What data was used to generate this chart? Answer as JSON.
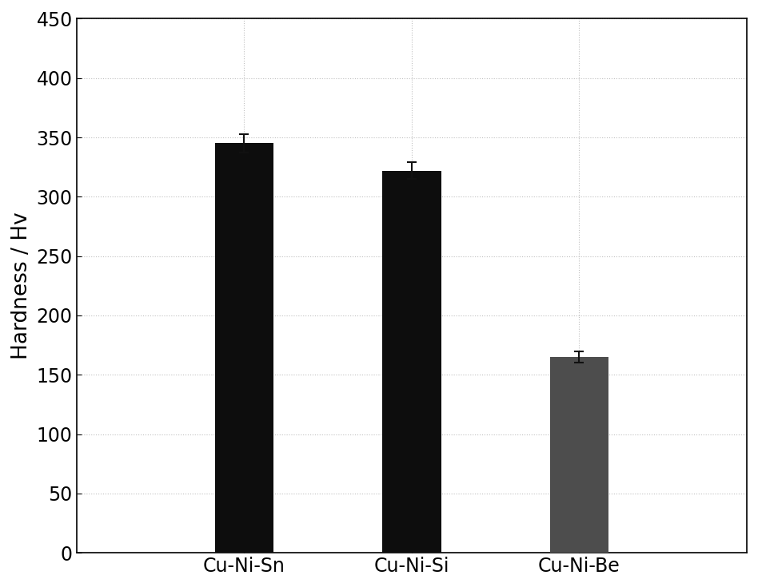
{
  "categories": [
    "Cu-Ni-Sn",
    "Cu-Ni-Si",
    "Cu-Ni-Be"
  ],
  "values": [
    345,
    322,
    165
  ],
  "errors": [
    8,
    7,
    5
  ],
  "bar_colors": [
    "#0d0d0d",
    "#0d0d0d",
    "#4d4d4d"
  ],
  "ylabel": "Hardness / Hv",
  "ylim": [
    0,
    450
  ],
  "yticks": [
    0,
    50,
    100,
    150,
    200,
    250,
    300,
    350,
    400,
    450
  ],
  "background_color": "#ffffff",
  "grid_color": "#c0c0c0",
  "bar_width": 0.35,
  "error_capsize": 4,
  "error_color": "#111111",
  "tick_fontsize": 17,
  "label_fontsize": 19,
  "xlim": [
    -0.5,
    3.5
  ]
}
